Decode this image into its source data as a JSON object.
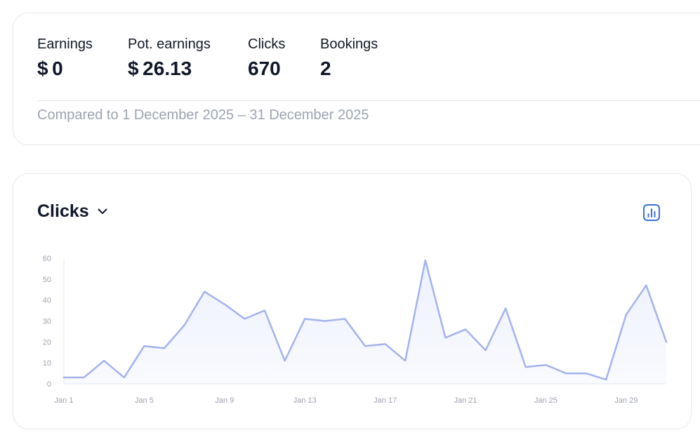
{
  "summary": {
    "metrics": [
      {
        "label": "Earnings",
        "value": "$ 0"
      },
      {
        "label": "Pot. earnings",
        "value": "$ 26.13"
      },
      {
        "label": "Clicks",
        "value": "670"
      },
      {
        "label": "Bookings",
        "value": "2"
      }
    ],
    "comparison": "Compared to 1 December 2025 – 31 December 2025"
  },
  "chart_card": {
    "title": "Clicks",
    "title_icon": "chevron-down-icon",
    "action_icon": "bar-chart-icon",
    "accent_color": "#3b6fd9"
  },
  "chart_data": {
    "type": "area",
    "x": [
      "Jan 1",
      "Jan 2",
      "Jan 3",
      "Jan 4",
      "Jan 5",
      "Jan 6",
      "Jan 7",
      "Jan 8",
      "Jan 9",
      "Jan 10",
      "Jan 11",
      "Jan 12",
      "Jan 13",
      "Jan 14",
      "Jan 15",
      "Jan 16",
      "Jan 17",
      "Jan 18",
      "Jan 19",
      "Jan 20",
      "Jan 21",
      "Jan 22",
      "Jan 23",
      "Jan 24",
      "Jan 25",
      "Jan 26",
      "Jan 27",
      "Jan 28",
      "Jan 29",
      "Jan 30",
      "Jan 31"
    ],
    "values": [
      3,
      3,
      11,
      3,
      18,
      17,
      28,
      44,
      38,
      31,
      35,
      11,
      31,
      30,
      31,
      18,
      19,
      11,
      59,
      22,
      26,
      16,
      36,
      8,
      9,
      5,
      5,
      2,
      33,
      47,
      20
    ],
    "x_tick_labels": [
      "Jan 1",
      "Jan 5",
      "Jan 9",
      "Jan 13",
      "Jan 17",
      "Jan 21",
      "Jan 25",
      "Jan 29"
    ],
    "y_ticks": [
      0,
      10,
      20,
      30,
      40,
      50,
      60
    ],
    "ylim": [
      0,
      60
    ],
    "title": "",
    "xlabel": "",
    "ylabel": "",
    "grid": false,
    "line_color": "#a3b3ee",
    "fill_color": "#eef1fd"
  }
}
